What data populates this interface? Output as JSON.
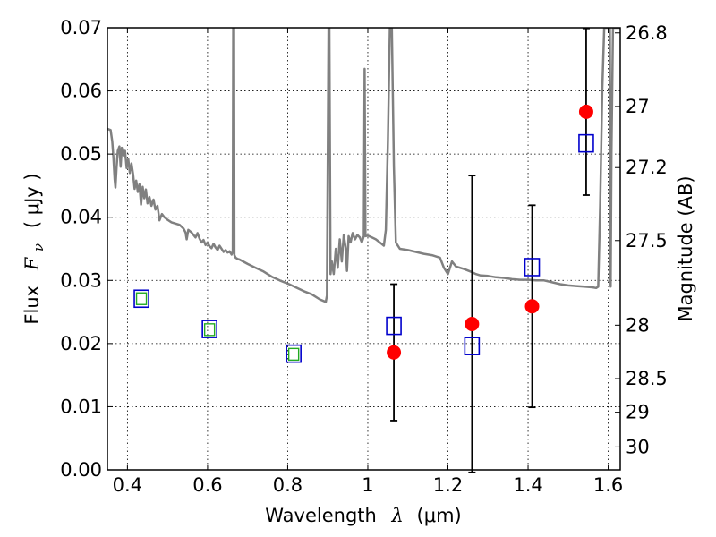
{
  "chart_data": {
    "type": "scatter",
    "xlabel_prefix": "Wavelength",
    "xlabel_symbol": "λ",
    "xlabel_unit": "(μm)",
    "ylabel_prefix": "Flux",
    "ylabel_symbol": "F",
    "ylabel_subscript": "ν",
    "ylabel_unit": "( μJy )",
    "y2label": "Magnitude (AB)",
    "xlim": [
      0.35,
      1.63
    ],
    "ylim": [
      0.0,
      0.07
    ],
    "x_ticks": [
      0.4,
      0.6,
      0.8,
      1.0,
      1.2,
      1.4,
      1.6
    ],
    "x_tick_labels": [
      "0.4",
      "0.6",
      "0.8",
      "1",
      "1.2",
      "1.4",
      "1.6"
    ],
    "y_ticks": [
      0.0,
      0.01,
      0.02,
      0.03,
      0.04,
      0.05,
      0.06,
      0.07
    ],
    "y_tick_labels": [
      "0.00",
      "0.01",
      "0.02",
      "0.03",
      "0.04",
      "0.05",
      "0.06",
      "0.07"
    ],
    "y2_ticks": [
      26.8,
      27.0,
      27.2,
      27.5,
      28.0,
      28.5,
      29.0,
      30.0
    ],
    "y2_tick_labels": [
      "26.8",
      "27",
      "27.2",
      "27.5",
      "28",
      "28.5",
      "29",
      "30"
    ],
    "grid": true,
    "colors": {
      "model": "#808080",
      "observed": "#ff0000",
      "model_phot": "#0000cc",
      "inner_phot": "#22aa22",
      "errorbar": "#000000"
    },
    "series": [
      {
        "name": "observed",
        "style": "red-circle-with-errorbar",
        "points": [
          {
            "x": 1.065,
            "y": 0.0186,
            "err": 0.0108
          },
          {
            "x": 1.26,
            "y": 0.0231,
            "err": 0.0235
          },
          {
            "x": 1.41,
            "y": 0.0259,
            "err": 0.016
          },
          {
            "x": 1.545,
            "y": 0.0567,
            "err": 0.0132
          }
        ]
      },
      {
        "name": "model-photometry",
        "style": "blue-open-square",
        "points": [
          {
            "x": 0.435,
            "y": 0.0271
          },
          {
            "x": 0.605,
            "y": 0.0223
          },
          {
            "x": 0.815,
            "y": 0.0184
          },
          {
            "x": 1.065,
            "y": 0.0228
          },
          {
            "x": 1.26,
            "y": 0.0196
          },
          {
            "x": 1.41,
            "y": 0.0321
          },
          {
            "x": 1.545,
            "y": 0.0517
          }
        ]
      },
      {
        "name": "inner-photometry",
        "style": "green-small-square",
        "points": [
          {
            "x": 0.435,
            "y": 0.0271
          },
          {
            "x": 0.605,
            "y": 0.0222
          },
          {
            "x": 0.815,
            "y": 0.0183
          }
        ]
      },
      {
        "name": "model-spectrum",
        "style": "gray-line",
        "points": [
          [
            0.35,
            0.054
          ],
          [
            0.358,
            0.0538
          ],
          [
            0.362,
            0.052
          ],
          [
            0.365,
            0.0495
          ],
          [
            0.368,
            0.046
          ],
          [
            0.37,
            0.0447
          ],
          [
            0.373,
            0.048
          ],
          [
            0.376,
            0.0505
          ],
          [
            0.38,
            0.0512
          ],
          [
            0.383,
            0.048
          ],
          [
            0.386,
            0.051
          ],
          [
            0.39,
            0.0498
          ],
          [
            0.394,
            0.0505
          ],
          [
            0.398,
            0.0478
          ],
          [
            0.402,
            0.0492
          ],
          [
            0.406,
            0.047
          ],
          [
            0.41,
            0.0485
          ],
          [
            0.414,
            0.0468
          ],
          [
            0.418,
            0.0445
          ],
          [
            0.422,
            0.0458
          ],
          [
            0.426,
            0.044
          ],
          [
            0.43,
            0.0452
          ],
          [
            0.434,
            0.042
          ],
          [
            0.438,
            0.0448
          ],
          [
            0.442,
            0.043
          ],
          [
            0.446,
            0.0444
          ],
          [
            0.45,
            0.0422
          ],
          [
            0.455,
            0.0432
          ],
          [
            0.46,
            0.0418
          ],
          [
            0.465,
            0.0428
          ],
          [
            0.47,
            0.0412
          ],
          [
            0.475,
            0.0418
          ],
          [
            0.48,
            0.0395
          ],
          [
            0.486,
            0.0405
          ],
          [
            0.492,
            0.04
          ],
          [
            0.5,
            0.0396
          ],
          [
            0.51,
            0.0392
          ],
          [
            0.52,
            0.039
          ],
          [
            0.53,
            0.0388
          ],
          [
            0.54,
            0.0382
          ],
          [
            0.545,
            0.0376
          ],
          [
            0.548,
            0.0365
          ],
          [
            0.552,
            0.038
          ],
          [
            0.56,
            0.0376
          ],
          [
            0.565,
            0.0372
          ],
          [
            0.57,
            0.0368
          ],
          [
            0.575,
            0.0375
          ],
          [
            0.58,
            0.0366
          ],
          [
            0.585,
            0.036
          ],
          [
            0.59,
            0.0364
          ],
          [
            0.595,
            0.0356
          ],
          [
            0.6,
            0.036
          ],
          [
            0.605,
            0.0354
          ],
          [
            0.61,
            0.0351
          ],
          [
            0.615,
            0.0358
          ],
          [
            0.62,
            0.0352
          ],
          [
            0.625,
            0.0348
          ],
          [
            0.63,
            0.0355
          ],
          [
            0.635,
            0.035
          ],
          [
            0.64,
            0.0345
          ],
          [
            0.645,
            0.0348
          ],
          [
            0.65,
            0.0344
          ],
          [
            0.655,
            0.0346
          ],
          [
            0.66,
            0.0341
          ],
          [
            0.663,
            0.0345
          ],
          [
            0.664,
            0.07
          ],
          [
            0.666,
            0.07
          ],
          [
            0.667,
            0.034
          ],
          [
            0.67,
            0.0336
          ],
          [
            0.675,
            0.0334
          ],
          [
            0.68,
            0.0333
          ],
          [
            0.7,
            0.0326
          ],
          [
            0.72,
            0.032
          ],
          [
            0.74,
            0.0314
          ],
          [
            0.76,
            0.0306
          ],
          [
            0.78,
            0.03
          ],
          [
            0.8,
            0.0295
          ],
          [
            0.82,
            0.0289
          ],
          [
            0.84,
            0.0283
          ],
          [
            0.86,
            0.0278
          ],
          [
            0.88,
            0.027
          ],
          [
            0.895,
            0.0266
          ],
          [
            0.898,
            0.0276
          ],
          [
            0.902,
            0.07
          ],
          [
            0.904,
            0.07
          ],
          [
            0.907,
            0.031
          ],
          [
            0.91,
            0.033
          ],
          [
            0.915,
            0.031
          ],
          [
            0.92,
            0.035
          ],
          [
            0.925,
            0.032
          ],
          [
            0.93,
            0.0365
          ],
          [
            0.935,
            0.033
          ],
          [
            0.94,
            0.0372
          ],
          [
            0.945,
            0.035
          ],
          [
            0.948,
            0.0315
          ],
          [
            0.952,
            0.037
          ],
          [
            0.957,
            0.036
          ],
          [
            0.962,
            0.0375
          ],
          [
            0.968,
            0.0365
          ],
          [
            0.974,
            0.0372
          ],
          [
            0.98,
            0.0368
          ],
          [
            0.985,
            0.036
          ],
          [
            0.99,
            0.037
          ],
          [
            0.992,
            0.0635
          ],
          [
            0.994,
            0.037
          ],
          [
            1.0,
            0.0371
          ],
          [
            1.01,
            0.0368
          ],
          [
            1.02,
            0.0365
          ],
          [
            1.03,
            0.036
          ],
          [
            1.04,
            0.0355
          ],
          [
            1.045,
            0.038
          ],
          [
            1.05,
            0.052
          ],
          [
            1.055,
            0.07
          ],
          [
            1.06,
            0.07
          ],
          [
            1.065,
            0.048
          ],
          [
            1.07,
            0.036
          ],
          [
            1.08,
            0.035
          ],
          [
            1.1,
            0.0348
          ],
          [
            1.12,
            0.0345
          ],
          [
            1.14,
            0.0342
          ],
          [
            1.16,
            0.034
          ],
          [
            1.18,
            0.0336
          ],
          [
            1.19,
            0.032
          ],
          [
            1.2,
            0.031
          ],
          [
            1.21,
            0.033
          ],
          [
            1.22,
            0.0322
          ],
          [
            1.24,
            0.0318
          ],
          [
            1.26,
            0.0313
          ],
          [
            1.27,
            0.031
          ],
          [
            1.28,
            0.0308
          ],
          [
            1.3,
            0.0307
          ],
          [
            1.32,
            0.0305
          ],
          [
            1.34,
            0.0304
          ],
          [
            1.36,
            0.0302
          ],
          [
            1.38,
            0.0301
          ],
          [
            1.4,
            0.0301
          ],
          [
            1.42,
            0.03
          ],
          [
            1.44,
            0.03
          ],
          [
            1.46,
            0.0297
          ],
          [
            1.48,
            0.0294
          ],
          [
            1.5,
            0.0292
          ],
          [
            1.52,
            0.0291
          ],
          [
            1.54,
            0.029
          ],
          [
            1.56,
            0.0289
          ],
          [
            1.57,
            0.0288
          ],
          [
            1.575,
            0.029
          ],
          [
            1.58,
            0.042
          ],
          [
            1.585,
            0.06
          ],
          [
            1.59,
            0.07
          ],
          [
            1.6,
            0.07
          ],
          [
            1.604,
            0.07
          ],
          [
            1.606,
            0.029
          ],
          [
            1.608,
            0.05
          ],
          [
            1.612,
            0.07
          ],
          [
            1.63,
            0.07
          ]
        ]
      }
    ]
  }
}
